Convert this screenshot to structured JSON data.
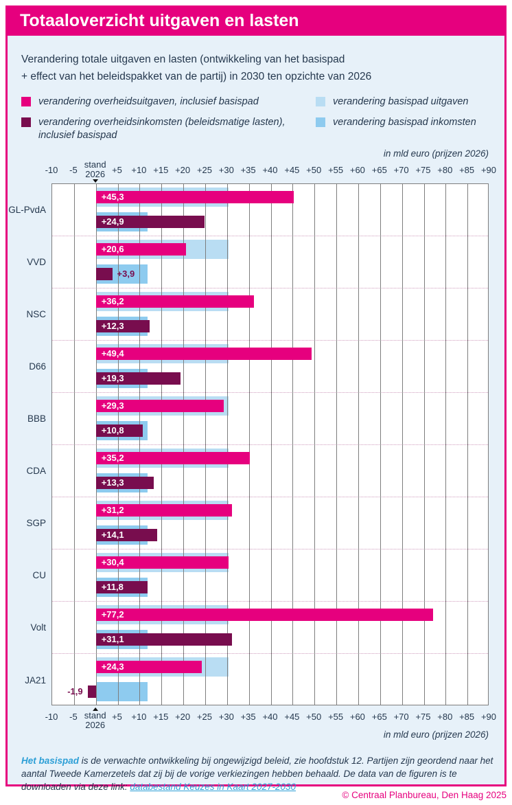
{
  "header": {
    "title": "Totaaloverzicht uitgaven en lasten"
  },
  "subtitle": {
    "line1": "Verandering totale uitgaven en lasten (ontwikkeling van het basispad",
    "line2": "+ effect van het beleidspakket van de partij) in 2030 ten opzichte van 2026"
  },
  "legend": {
    "items": [
      {
        "label": "verandering overheidsuitgaven, inclusief basispad",
        "color": "#e6007e",
        "column": "left",
        "row": 0
      },
      {
        "label": "verandering overheidsinkomsten (beleidsmatige lasten), inclusief basispad",
        "color": "#780d4e",
        "column": "left",
        "row": 1
      },
      {
        "label": "verandering basispad uitgaven",
        "color": "#b9ddf3",
        "column": "right",
        "row": 0
      },
      {
        "label": "verandering basispad inkomsten",
        "color": "#8ecbef",
        "column": "right",
        "row": 1
      }
    ]
  },
  "axis": {
    "unit_label": "in mld euro (prijzen 2026)",
    "zero_label_top": "stand",
    "zero_label_bottom": "2026",
    "ticks": [
      {
        "value": -10,
        "label": "-10"
      },
      {
        "value": -5,
        "label": "-5"
      },
      {
        "value": 0,
        "label": "2026",
        "label_above": "stand",
        "marker": true
      },
      {
        "value": 5,
        "label": "+5"
      },
      {
        "value": 10,
        "label": "+10"
      },
      {
        "value": 15,
        "label": "+15"
      },
      {
        "value": 20,
        "label": "+20"
      },
      {
        "value": 25,
        "label": "+25"
      },
      {
        "value": 30,
        "label": "+30"
      },
      {
        "value": 35,
        "label": "+35"
      },
      {
        "value": 40,
        "label": "+40"
      },
      {
        "value": 45,
        "label": "+45"
      },
      {
        "value": 50,
        "label": "+50"
      },
      {
        "value": 55,
        "label": "+55"
      },
      {
        "value": 60,
        "label": "+60"
      },
      {
        "value": 65,
        "label": "+65"
      },
      {
        "value": 70,
        "label": "+70"
      },
      {
        "value": 75,
        "label": "+75"
      },
      {
        "value": 80,
        "label": "+80"
      },
      {
        "value": 85,
        "label": "+85"
      },
      {
        "value": 90,
        "label": "+90"
      }
    ]
  },
  "chart_data": {
    "type": "bar",
    "orientation": "horizontal",
    "title": "Totaaloverzicht uitgaven en lasten",
    "unit": "mld euro (prijzen 2026)",
    "xlim": [
      -10,
      90
    ],
    "x_tick_step": 5,
    "grid": true,
    "categories": [
      "GL-PvdA",
      "VVD",
      "NSC",
      "D66",
      "BBB",
      "CDA",
      "SGP",
      "CU",
      "Volt",
      "JA21"
    ],
    "series": [
      {
        "name": "verandering overheidsuitgaven, inclusief basispad",
        "color": "#e6007e",
        "values": [
          45.3,
          20.6,
          36.2,
          49.4,
          29.3,
          35.2,
          31.2,
          30.4,
          77.2,
          24.3
        ],
        "labels": [
          "+45,3",
          "+20,6",
          "+36,2",
          "+49,4",
          "+29,3",
          "+35,2",
          "+31,2",
          "+30,4",
          "+77,2",
          "+24,3"
        ]
      },
      {
        "name": "verandering overheidsinkomsten (beleidsmatige lasten), inclusief basispad",
        "color": "#780d4e",
        "values": [
          24.9,
          3.9,
          12.3,
          19.3,
          10.8,
          13.3,
          14.1,
          11.8,
          31.1,
          -1.9
        ],
        "labels": [
          "+24,9",
          "+3,9",
          "+12,3",
          "+19,3",
          "+10,8",
          "+13,3",
          "+14,1",
          "+11,8",
          "+31,1",
          "-1,9"
        ]
      },
      {
        "name": "verandering basispad uitgaven",
        "color": "#b9ddf3",
        "values": [
          30.4,
          30.4,
          30.4,
          30.4,
          30.4,
          30.4,
          30.4,
          30.4,
          30.4,
          30.4
        ]
      },
      {
        "name": "verandering basispad inkomsten",
        "color": "#8ecbef",
        "values": [
          11.8,
          11.8,
          11.8,
          11.8,
          11.8,
          11.8,
          11.8,
          11.8,
          11.8,
          11.8
        ]
      }
    ]
  },
  "footer": {
    "lead": "Het basispad",
    "line1_rest": " is de verwachte ontwikkeling bij ongewijzigd beleid, zie hoofdstuk 12. Partijen zijn geordend naar het aantal Tweede Kamerzetels",
    "line2_text": "dat zij bij de vorige verkiezingen hebben behaald. De data van de figuren is te downloaden via deze link: ",
    "link_label": "databestand Keuzes in Kaart 2027-2030"
  },
  "copyright": "© Centraal Planbureau, Den Haag 2025",
  "colors": {
    "brand_magenta": "#e6007e",
    "dark_purple": "#780d4e",
    "light_blue": "#b9ddf3",
    "mid_blue": "#8ecbef",
    "panel_bg": "#e7f1f9",
    "text_navy": "#25384e",
    "grid_grey": "#7d7d7d",
    "separator_pink": "#cf9cbd",
    "link_blue": "#2d9fd6"
  }
}
